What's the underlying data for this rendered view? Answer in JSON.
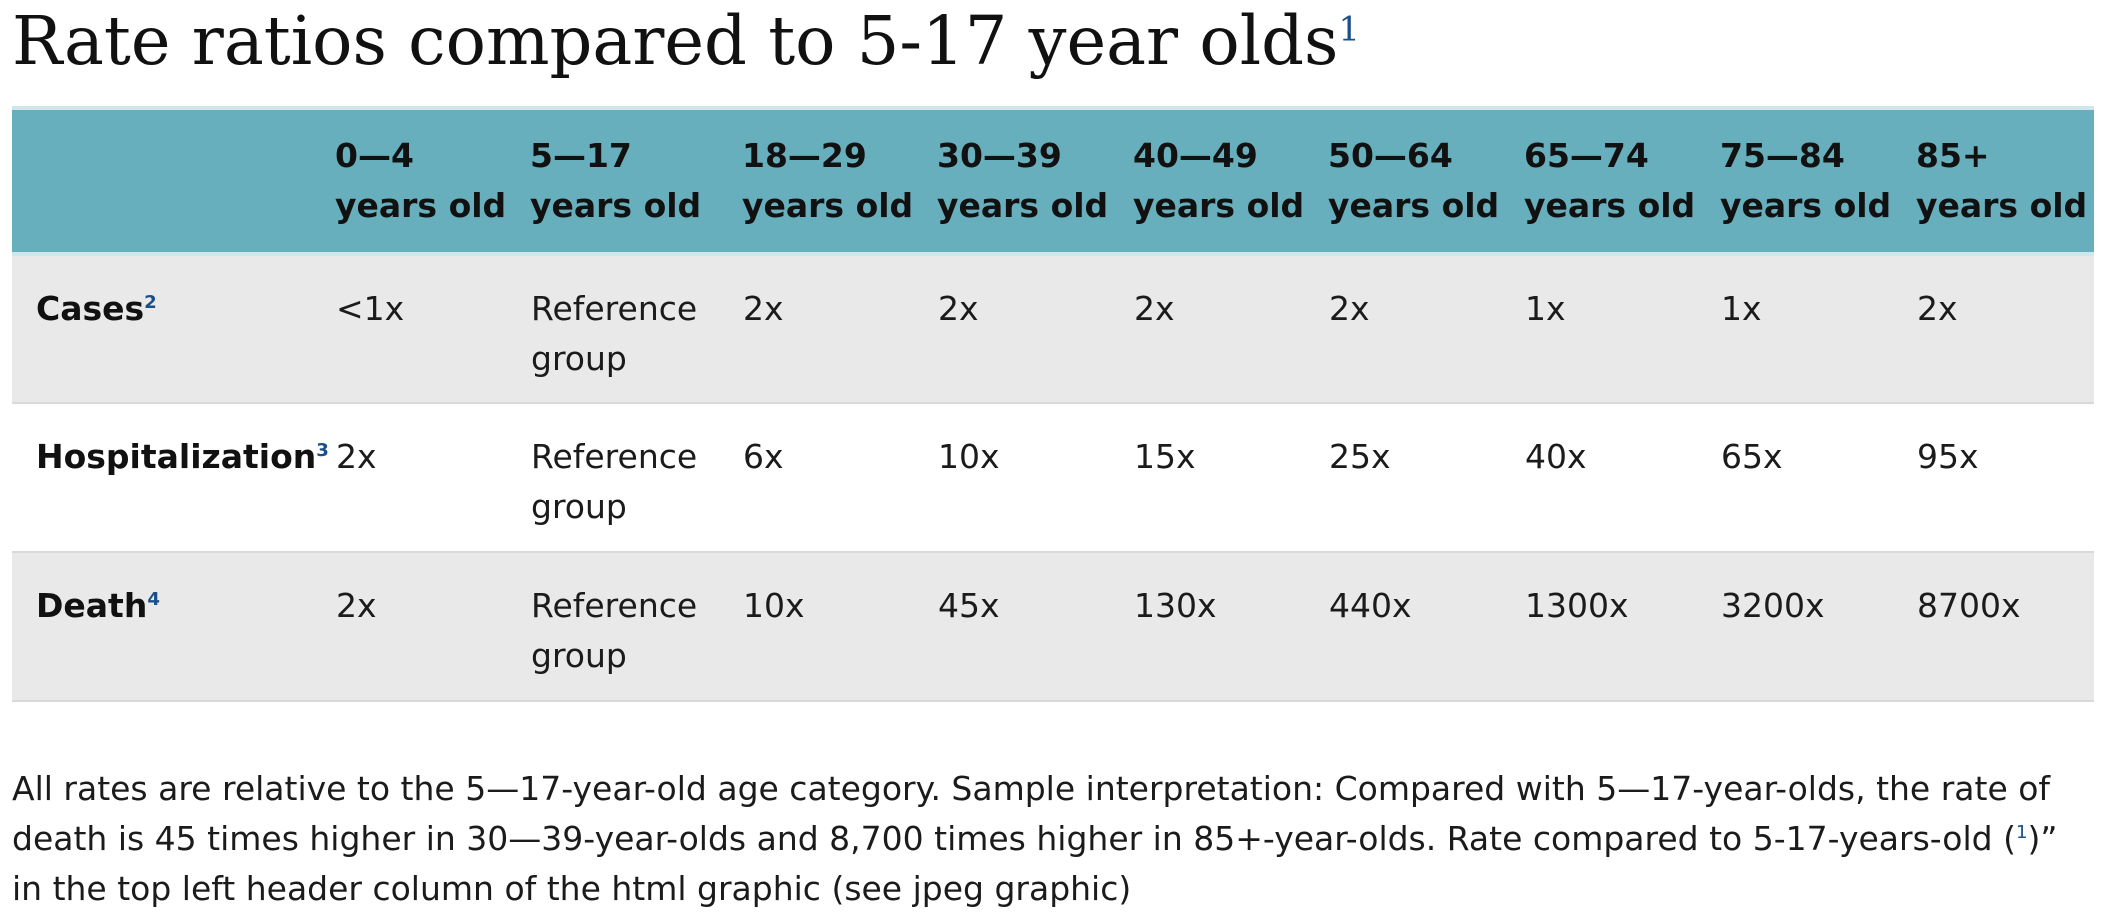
{
  "title": {
    "text": "Rate ratios compared to 5-17 year olds",
    "footnote": "1"
  },
  "table": {
    "columns": [
      {
        "range": "",
        "unit": ""
      },
      {
        "range": "0—4",
        "unit": "years old"
      },
      {
        "range": "5—17",
        "unit": "years old"
      },
      {
        "range": "18—29",
        "unit": "years old"
      },
      {
        "range": "30—39",
        "unit": "years old"
      },
      {
        "range": "40—49",
        "unit": "years old"
      },
      {
        "range": "50—64",
        "unit": "years old"
      },
      {
        "range": "65—74",
        "unit": "years old"
      },
      {
        "range": "75—84",
        "unit": "years old"
      },
      {
        "range": "85+",
        "unit": "years old"
      }
    ],
    "rows": [
      {
        "label": "Cases",
        "footnote": "2",
        "values": [
          "<1x",
          "Reference group",
          "2x",
          "2x",
          "2x",
          "2x",
          "1x",
          "1x",
          "2x"
        ]
      },
      {
        "label": "Hospitalization",
        "footnote": "3",
        "values": [
          "2x",
          "Reference group",
          "6x",
          "10x",
          "15x",
          "25x",
          "40x",
          "65x",
          "95x"
        ]
      },
      {
        "label": "Death",
        "footnote": "4",
        "values": [
          "2x",
          "Reference group",
          "10x",
          "45x",
          "130x",
          "440x",
          "1300x",
          "3200x",
          "8700x"
        ]
      }
    ]
  },
  "notes": {
    "line1": "All rates are relative to the 5—17-year-old age category. Sample interpretation: Compared with 5—17-year-olds, the rate of",
    "line2_before": "death is 45 times higher in 30—39-year-olds and 8,700 times higher in 85+-year-olds. Rate compared to 5-17-years-old (",
    "line2_ref": "1",
    "line2_after": ")”",
    "line3": "in the top left header column of the html graphic (see jpeg graphic)"
  },
  "colors": {
    "header_bg": "#68afbd",
    "shaded_row": "#e9e9e9",
    "footnote_link": "#1a4f8a"
  }
}
